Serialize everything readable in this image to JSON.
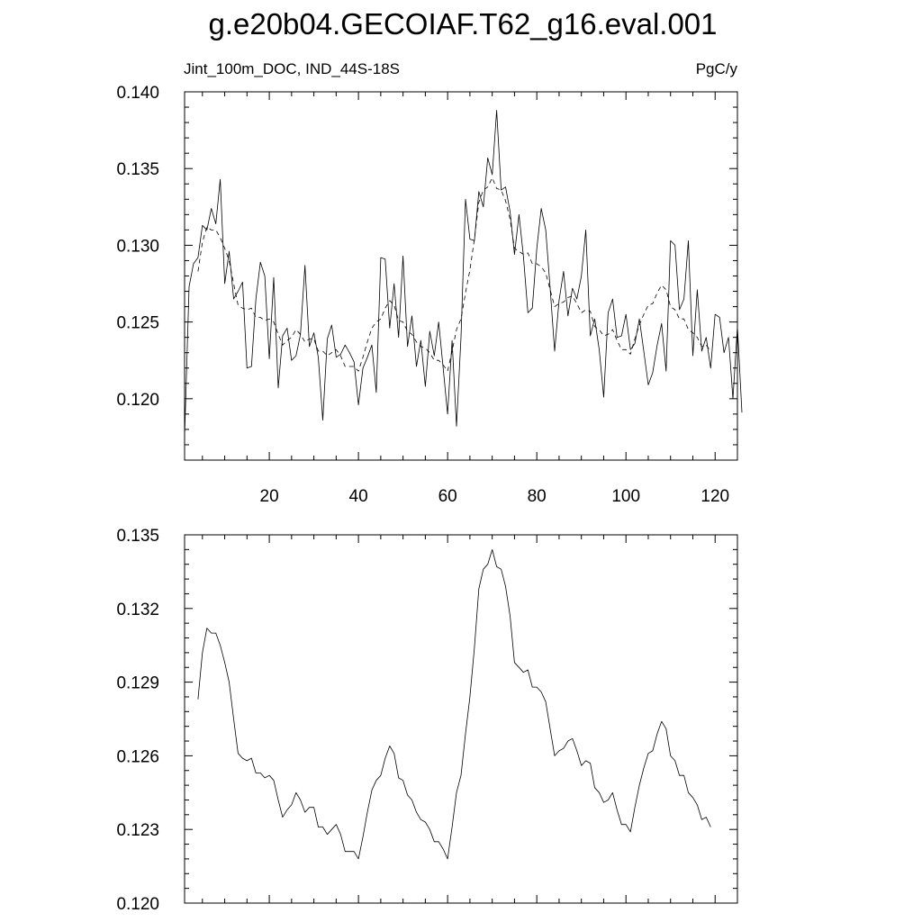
{
  "page": {
    "title": "g.e20b04.GECOIAF.T62_g16.eval.001"
  },
  "chart_data": [
    {
      "type": "line",
      "left_label": "Jint_100m_DOC, IND_44S-18S",
      "right_label": "PgC/y",
      "xlim": [
        1,
        125
      ],
      "ylim": [
        0.116,
        0.14
      ],
      "x_ticks": [
        20,
        40,
        60,
        80,
        100,
        120
      ],
      "y_ticks": [
        "0.140",
        "0.135",
        "0.130",
        "0.125",
        "0.120"
      ],
      "x_start": 1,
      "series": [
        {
          "style": "solid",
          "values": [
            0.1175,
            0.1273,
            0.1288,
            0.1292,
            0.1313,
            0.131,
            0.1324,
            0.1314,
            0.1343,
            0.1275,
            0.1296,
            0.1265,
            0.127,
            0.1276,
            0.122,
            0.1221,
            0.1265,
            0.1289,
            0.128,
            0.1226,
            0.1279,
            0.1207,
            0.1241,
            0.1246,
            0.1225,
            0.1228,
            0.1242,
            0.1287,
            0.1234,
            0.1243,
            0.1227,
            0.1186,
            0.1239,
            0.1248,
            0.1227,
            0.1229,
            0.1235,
            0.123,
            0.1224,
            0.1196,
            0.122,
            0.1227,
            0.1235,
            0.1204,
            0.1292,
            0.1291,
            0.1246,
            0.1275,
            0.124,
            0.1293,
            0.1234,
            0.1254,
            0.1221,
            0.1238,
            0.1208,
            0.1244,
            0.1228,
            0.125,
            0.122,
            0.119,
            0.1238,
            0.1182,
            0.124,
            0.133,
            0.1304,
            0.1303,
            0.1335,
            0.1325,
            0.1357,
            0.1346,
            0.1388,
            0.1336,
            0.1338,
            0.1322,
            0.1294,
            0.132,
            0.1293,
            0.1256,
            0.1259,
            0.1298,
            0.1324,
            0.131,
            0.1272,
            0.1231,
            0.1264,
            0.1283,
            0.1254,
            0.1272,
            0.1265,
            0.128,
            0.131,
            0.1241,
            0.1252,
            0.1232,
            0.1201,
            0.1256,
            0.1265,
            0.124,
            0.1241,
            0.1255,
            0.1232,
            0.1236,
            0.1252,
            0.1231,
            0.1209,
            0.1217,
            0.1235,
            0.1249,
            0.1218,
            0.1303,
            0.13,
            0.1258,
            0.1265,
            0.1303,
            0.1228,
            0.1271,
            0.1231,
            0.124,
            0.122,
            0.1255,
            0.1253,
            0.123,
            0.124,
            0.12,
            0.1247,
            0.1191
          ]
        },
        {
          "style": "dashed",
          "x_start": 4,
          "values": [
            0.1283,
            0.1302,
            0.1312,
            0.131,
            0.131,
            0.1305,
            0.1298,
            0.129,
            0.1275,
            0.1261,
            0.1259,
            0.1258,
            0.1259,
            0.1253,
            0.1253,
            0.1251,
            0.1252,
            0.125,
            0.1242,
            0.1235,
            0.1238,
            0.124,
            0.1245,
            0.1242,
            0.1237,
            0.1239,
            0.1239,
            0.1231,
            0.1231,
            0.1228,
            0.123,
            0.1232,
            0.1228,
            0.1221,
            0.1221,
            0.1221,
            0.1218,
            0.1227,
            0.1237,
            0.1246,
            0.125,
            0.1252,
            0.1259,
            0.1264,
            0.1261,
            0.1251,
            0.125,
            0.1244,
            0.1242,
            0.1237,
            0.1234,
            0.1233,
            0.123,
            0.1225,
            0.1225,
            0.1222,
            0.1218,
            0.1231,
            0.1245,
            0.1252,
            0.1269,
            0.1284,
            0.1304,
            0.1328,
            0.1336,
            0.1338,
            0.1344,
            0.1337,
            0.1336,
            0.1329,
            0.1317,
            0.1298,
            0.1296,
            0.1294,
            0.1295,
            0.1288,
            0.1288,
            0.1286,
            0.1282,
            0.1271,
            0.126,
            0.1262,
            0.1263,
            0.1266,
            0.1267,
            0.1262,
            0.1256,
            0.1258,
            0.1257,
            0.1247,
            0.1245,
            0.1241,
            0.1242,
            0.1245,
            0.1238,
            0.1232,
            0.1232,
            0.1229,
            0.1239,
            0.1248,
            0.1255,
            0.1261,
            0.1262,
            0.1269,
            0.1274,
            0.1271,
            0.126,
            0.1258,
            0.1252,
            0.1252,
            0.1245,
            0.1243,
            0.124,
            0.1234,
            0.1235,
            0.1231
          ]
        }
      ]
    },
    {
      "type": "line",
      "xlim": [
        1,
        125
      ],
      "ylim": [
        0.12,
        0.135
      ],
      "y_ticks": [
        "0.135",
        "0.132",
        "0.129",
        "0.126",
        "0.123",
        "0.120"
      ],
      "series": [
        {
          "style": "solid",
          "x_start": 4,
          "values": [
            0.1283,
            0.1302,
            0.1312,
            0.131,
            0.131,
            0.1305,
            0.1298,
            0.129,
            0.1275,
            0.1261,
            0.1259,
            0.1258,
            0.1259,
            0.1253,
            0.1253,
            0.1251,
            0.1252,
            0.125,
            0.1242,
            0.1235,
            0.1238,
            0.124,
            0.1245,
            0.1242,
            0.1237,
            0.1239,
            0.1239,
            0.1231,
            0.1231,
            0.1228,
            0.123,
            0.1232,
            0.1228,
            0.1221,
            0.1221,
            0.1221,
            0.1218,
            0.1227,
            0.1237,
            0.1246,
            0.125,
            0.1252,
            0.1259,
            0.1264,
            0.1261,
            0.1251,
            0.125,
            0.1244,
            0.1242,
            0.1237,
            0.1234,
            0.1233,
            0.123,
            0.1225,
            0.1225,
            0.1222,
            0.1218,
            0.1231,
            0.1245,
            0.1252,
            0.1269,
            0.1284,
            0.1304,
            0.1328,
            0.1336,
            0.1338,
            0.1344,
            0.1337,
            0.1336,
            0.1329,
            0.1317,
            0.1298,
            0.1296,
            0.1294,
            0.1295,
            0.1288,
            0.1288,
            0.1286,
            0.1282,
            0.1271,
            0.126,
            0.1262,
            0.1263,
            0.1266,
            0.1267,
            0.1262,
            0.1256,
            0.1258,
            0.1257,
            0.1247,
            0.1245,
            0.1241,
            0.1242,
            0.1245,
            0.1238,
            0.1232,
            0.1232,
            0.1229,
            0.1239,
            0.1248,
            0.1255,
            0.1261,
            0.1262,
            0.1269,
            0.1274,
            0.1271,
            0.126,
            0.1258,
            0.1252,
            0.1252,
            0.1245,
            0.1243,
            0.124,
            0.1234,
            0.1235,
            0.1231
          ]
        }
      ]
    }
  ]
}
